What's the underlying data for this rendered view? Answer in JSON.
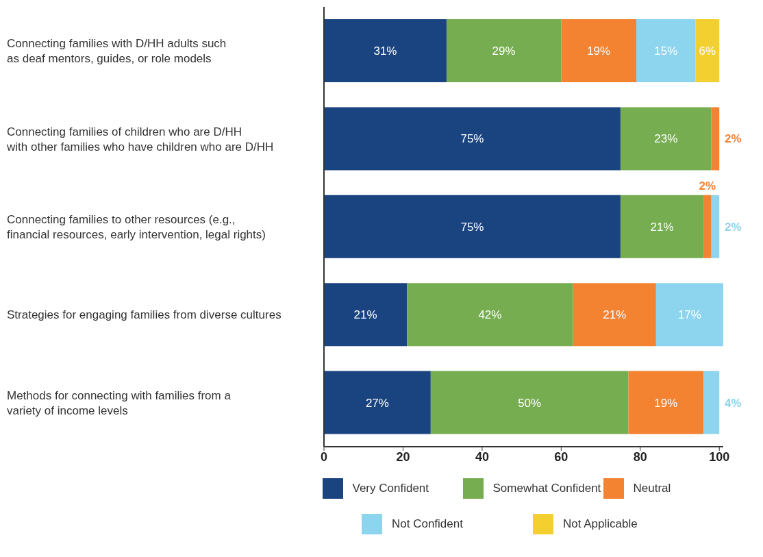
{
  "chart_data": {
    "type": "bar",
    "orientation": "horizontal",
    "stacked": true,
    "categories": [
      "Connecting families with D/HH adults such\nas deaf mentors, guides, or role models",
      "Connecting families of children who are D/HH\nwith other families who have children who are D/HH",
      "Connecting families to other resources (e.g.,\nfinancial resources, early intervention, legal rights)",
      "Strategies for engaging families from diverse cultures",
      "Methods for connecting with families from a\nvariety of income levels"
    ],
    "series": [
      {
        "name": "Very Confident",
        "color": "#1a4480",
        "values": [
          31,
          75,
          75,
          21,
          27
        ],
        "value_labels": [
          "31%",
          "75%",
          "75%",
          "21%",
          "27%"
        ]
      },
      {
        "name": "Somewhat Confident",
        "color": "#77ad51",
        "values": [
          29,
          23,
          21,
          42,
          50
        ],
        "value_labels": [
          "29%",
          "23%",
          "21%",
          "42%",
          "50%"
        ]
      },
      {
        "name": "Neutral",
        "color": "#f38231",
        "values": [
          19,
          2,
          2,
          21,
          19
        ],
        "value_labels": [
          "19%",
          "2%",
          "2%",
          "21%",
          "19%"
        ]
      },
      {
        "name": "Not Confident",
        "color": "#8dd4ef",
        "values": [
          15,
          null,
          2,
          17,
          4
        ],
        "value_labels": [
          "15%",
          null,
          "2%",
          "17%",
          "4%"
        ]
      },
      {
        "name": "Not Applicable",
        "color": "#f4cf30",
        "values": [
          6,
          null,
          null,
          null,
          null
        ],
        "value_labels": [
          "6%",
          null,
          null,
          null,
          null
        ]
      }
    ],
    "xlim": [
      0,
      101
    ],
    "xticks": [
      0,
      20,
      40,
      60,
      80,
      100
    ],
    "grid": false,
    "legend": "bottom"
  }
}
